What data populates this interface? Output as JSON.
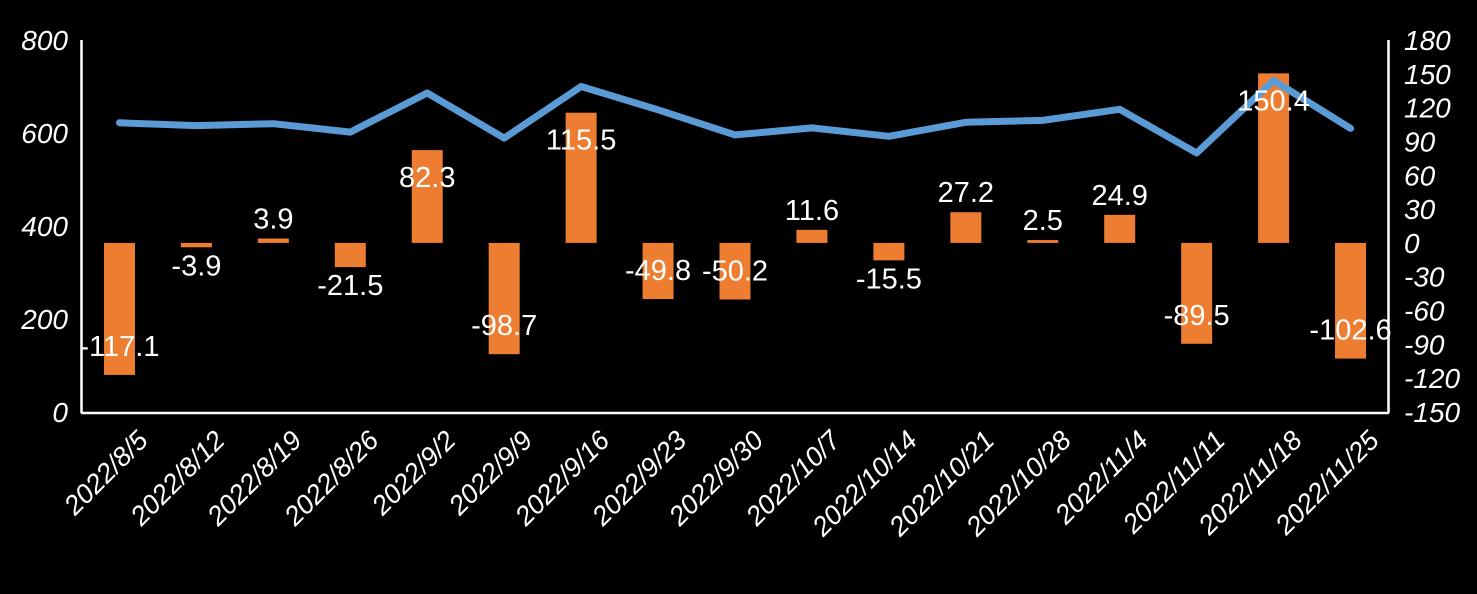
{
  "chart_data": {
    "type": "combo",
    "background_color": "#000000",
    "text_color": "#FFFFFF",
    "axis_color": "#FFFFFF",
    "grid": false,
    "legend": null,
    "categories": [
      "2022/8/5",
      "2022/8/12",
      "2022/8/19",
      "2022/8/26",
      "2022/9/2",
      "2022/9/9",
      "2022/9/16",
      "2022/9/23",
      "2022/9/30",
      "2022/10/7",
      "2022/10/14",
      "2022/10/21",
      "2022/10/28",
      "2022/11/4",
      "2022/11/11",
      "2022/11/18",
      "2022/11/25"
    ],
    "series": [
      {
        "name": "weekly-change-bars",
        "type": "bar",
        "axis": "right",
        "color": "#ED7D31",
        "values": [
          -117.1,
          -3.9,
          3.9,
          -21.5,
          82.3,
          -98.7,
          115.5,
          -49.8,
          -50.2,
          11.6,
          -15.5,
          27.2,
          2.5,
          24.9,
          -89.5,
          150.4,
          -102.6
        ],
        "data_labels": [
          "-117.1",
          "-3.9",
          "3.9",
          "-21.5",
          "82.3",
          "-98.7",
          "115.5",
          "-49.8",
          "-50.2",
          "11.6",
          "-15.5",
          "27.2",
          "2.5",
          "24.9",
          "-89.5",
          "150.4",
          "-102.6"
        ]
      },
      {
        "name": "level-line",
        "type": "line",
        "axis": "left",
        "color": "#5B9BD5",
        "values": [
          622,
          616,
          620,
          602,
          686,
          589,
          700,
          650,
          596,
          611,
          593,
          623,
          627,
          651,
          557,
          713,
          610
        ]
      }
    ],
    "left_axis": {
      "min": 0,
      "max": 800,
      "step": 200,
      "tick_labels": [
        "800",
        "600",
        "400",
        "200",
        "0"
      ]
    },
    "right_axis": {
      "min": -150,
      "max": 180,
      "step": 30,
      "tick_labels": [
        "180",
        "150",
        "120",
        "90",
        "60",
        "30",
        "0",
        "-30",
        "-60",
        "-90",
        "-120",
        "-150"
      ]
    }
  }
}
